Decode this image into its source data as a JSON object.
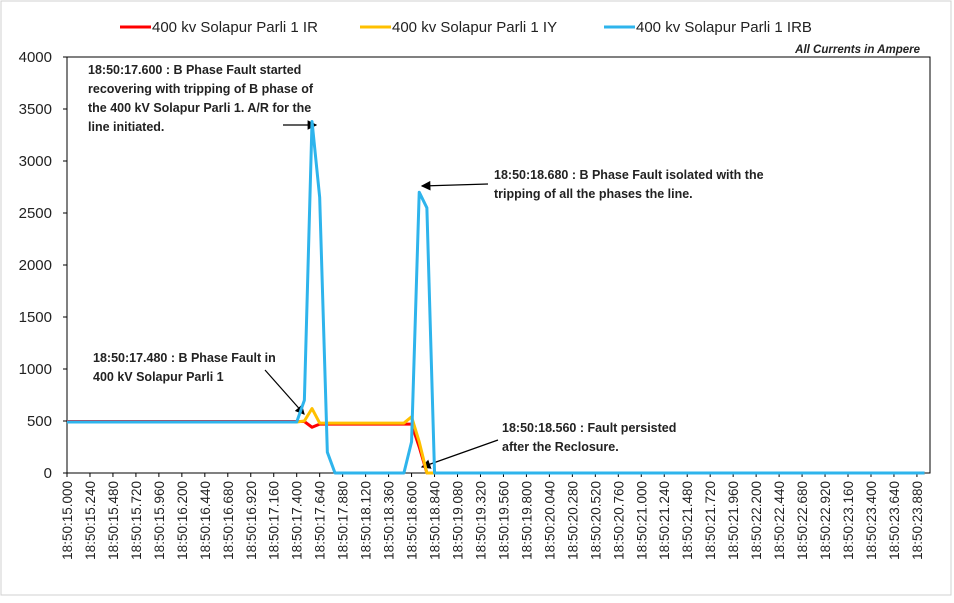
{
  "chart_data": {
    "type": "line",
    "note": "All Currents in Ampere",
    "categories": [
      "18:50:15.000",
      null,
      null,
      "18:50:15.240",
      null,
      null,
      "18:50:15.480",
      null,
      null,
      "18:50:15.720",
      null,
      null,
      "18:50:15.960",
      null,
      null,
      "18:50:16.200",
      null,
      null,
      "18:50:16.440",
      null,
      null,
      "18:50:16.680",
      null,
      null,
      "18:50:16.920",
      null,
      null,
      "18:50:17.160",
      null,
      null,
      "18:50:17.400",
      null,
      null,
      "18:50:17.640",
      null,
      null,
      "18:50:17.880",
      null,
      null,
      "18:50:18.120",
      null,
      null,
      "18:50:18.360",
      null,
      null,
      "18:50:18.600",
      null,
      null,
      "18:50:18.840",
      null,
      null,
      "18:50:19.080",
      null,
      null,
      "18:50:19.320",
      null,
      null,
      "18:50:19.560",
      null,
      null,
      "18:50:19.800",
      null,
      null,
      "18:50:20.040",
      null,
      null,
      "18:50:20.280",
      null,
      null,
      "18:50:20.520",
      null,
      null,
      "18:50:20.760",
      null,
      null,
      "18:50:21.000",
      null,
      null,
      "18:50:21.240",
      null,
      null,
      "18:50:21.480",
      null,
      null,
      "18:50:21.720",
      null,
      null,
      "18:50:21.960",
      null,
      null,
      "18:50:22.200",
      null,
      null,
      "18:50:22.440",
      null,
      null,
      "18:50:22.680",
      null,
      null,
      "18:50:22.920",
      null,
      null,
      "18:50:23.160",
      null,
      null,
      "18:50:23.400",
      null,
      null,
      "18:50:23.640",
      null,
      null,
      "18:50:23.880",
      null
    ],
    "series": [
      {
        "name": "400 kv Solapur Parli 1 IR",
        "color": "#ff0000",
        "values": [
          495,
          495,
          495,
          495,
          495,
          495,
          495,
          495,
          495,
          495,
          495,
          495,
          495,
          495,
          495,
          495,
          495,
          495,
          495,
          495,
          495,
          495,
          495,
          495,
          495,
          495,
          495,
          495,
          495,
          495,
          495,
          495,
          440,
          470,
          470,
          470,
          470,
          470,
          470,
          470,
          470,
          470,
          470,
          470,
          470,
          470,
          250,
          0,
          0,
          0,
          0,
          0,
          0,
          0,
          0,
          0,
          0,
          0,
          0,
          0,
          0,
          0,
          0,
          0,
          0,
          0,
          0,
          0,
          0,
          0,
          0,
          0,
          0,
          0,
          0,
          0,
          0,
          0,
          0,
          0,
          0,
          0,
          0,
          0,
          0,
          0,
          0,
          0,
          0,
          0,
          0,
          0,
          0,
          0,
          0,
          0,
          0,
          0,
          0,
          0,
          0,
          0,
          0,
          0,
          0,
          0,
          0,
          0,
          0,
          0,
          0,
          0,
          0
        ]
      },
      {
        "name": "400 kv Solapur Parli 1 IY",
        "color": "#ffc000",
        "values": [
          490,
          490,
          490,
          490,
          490,
          490,
          490,
          490,
          490,
          490,
          490,
          490,
          490,
          490,
          490,
          490,
          490,
          490,
          490,
          490,
          490,
          490,
          490,
          490,
          490,
          490,
          490,
          490,
          490,
          490,
          490,
          500,
          620,
          480,
          480,
          480,
          480,
          480,
          480,
          480,
          480,
          480,
          480,
          480,
          480,
          540,
          300,
          0,
          0,
          0,
          0,
          0,
          0,
          0,
          0,
          0,
          0,
          0,
          0,
          0,
          0,
          0,
          0,
          0,
          0,
          0,
          0,
          0,
          0,
          0,
          0,
          0,
          0,
          0,
          0,
          0,
          0,
          0,
          0,
          0,
          0,
          0,
          0,
          0,
          0,
          0,
          0,
          0,
          0,
          0,
          0,
          0,
          0,
          0,
          0,
          0,
          0,
          0,
          0,
          0,
          0,
          0,
          0,
          0,
          0,
          0,
          0,
          0,
          0,
          0,
          0,
          0,
          0
        ]
      },
      {
        "name": "400 kv Solapur Parli 1 IRB",
        "color": "#2eb4ec",
        "values": [
          490,
          490,
          490,
          490,
          490,
          490,
          490,
          490,
          490,
          490,
          490,
          490,
          490,
          490,
          490,
          490,
          490,
          490,
          490,
          490,
          490,
          490,
          490,
          490,
          490,
          490,
          490,
          490,
          490,
          490,
          490,
          700,
          3380,
          2650,
          200,
          0,
          0,
          0,
          0,
          0,
          0,
          0,
          0,
          0,
          0,
          300,
          2700,
          2550,
          0,
          0,
          0,
          0,
          0,
          0,
          0,
          0,
          0,
          0,
          0,
          0,
          0,
          0,
          0,
          0,
          0,
          0,
          0,
          0,
          0,
          0,
          0,
          0,
          0,
          0,
          0,
          0,
          0,
          0,
          0,
          0,
          0,
          0,
          0,
          0,
          0,
          0,
          0,
          0,
          0,
          0,
          0,
          0,
          0,
          0,
          0,
          0,
          0,
          0,
          0,
          0,
          0,
          0,
          0,
          0,
          0,
          0,
          0,
          0,
          0,
          0,
          0,
          0,
          0
        ]
      }
    ],
    "ylim": [
      0,
      4000
    ],
    "yticks": [
      0,
      500,
      1000,
      1500,
      2000,
      2500,
      3000,
      3500,
      4000
    ],
    "grid": false,
    "annotations": [
      {
        "lines": [
          "18:50:17.600  : B Phase Fault started",
          "recovering with tripping of B phase of",
          "the 400 kV Solapur Parli 1. A/R for the",
          "line initiated."
        ]
      },
      {
        "lines": [
          "18:50:18.680  : B Phase Fault isolated with the",
          "tripping of all the phases the line."
        ]
      },
      {
        "lines": [
          "18:50:17.480  : B Phase Fault in",
          "400 kV Solapur Parli 1"
        ]
      },
      {
        "lines": [
          "18:50:18.560  : Fault persisted",
          "after the Reclosure."
        ]
      }
    ]
  }
}
